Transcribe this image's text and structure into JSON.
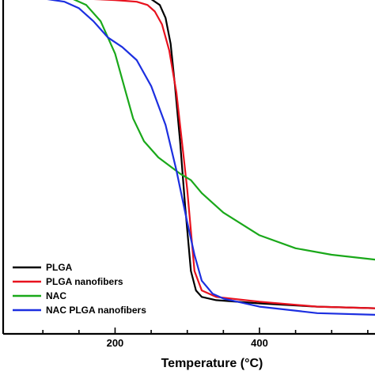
{
  "chart_data": {
    "type": "line",
    "title": "",
    "xlabel": "Temperature (°C)",
    "ylabel": "",
    "xlim": [
      45,
      560
    ],
    "ylim": [
      0,
      100
    ],
    "x_ticks": [
      200,
      400
    ],
    "grid": false,
    "legend": {
      "placement": "bottom-left",
      "entries": [
        "PLGA",
        "PLGA nanofibers",
        "NAC",
        "NAC PLGA nanofibers"
      ]
    },
    "series": [
      {
        "name": "PLGA",
        "color": "#000000",
        "x": [
          45,
          100,
          150,
          200,
          230,
          250,
          262,
          270,
          277,
          283,
          290,
          297,
          305,
          312,
          320,
          340,
          400,
          480,
          560
        ],
        "y": [
          100,
          99.8,
          99.7,
          99.6,
          99.4,
          98.8,
          97,
          93,
          85,
          72,
          55,
          35,
          15,
          9,
          7,
          6,
          5,
          4,
          3.5
        ]
      },
      {
        "name": "PLGA nanofibers",
        "color": "#e8121e",
        "x": [
          45,
          100,
          150,
          200,
          230,
          245,
          255,
          265,
          275,
          285,
          295,
          300,
          310,
          320,
          340,
          400,
          480,
          560
        ],
        "y": [
          100,
          99.5,
          99,
          98.5,
          98,
          97,
          95,
          91,
          83,
          70,
          50,
          40,
          15,
          9,
          7,
          5.5,
          4,
          3.5
        ]
      },
      {
        "name": "NAC",
        "color": "#1aa81a",
        "x": [
          45,
          100,
          140,
          160,
          180,
          200,
          215,
          225,
          240,
          260,
          290,
          305,
          320,
          350,
          400,
          450,
          500,
          560
        ],
        "y": [
          100,
          99.5,
          99,
          97,
          92,
          82,
          70,
          62,
          55,
          50,
          45,
          43,
          39,
          33,
          26,
          22,
          20,
          18.5
        ]
      },
      {
        "name": "NAC PLGA nanofibers",
        "color": "#1c2fe0",
        "x": [
          45,
          100,
          130,
          150,
          170,
          190,
          210,
          230,
          250,
          270,
          285,
          300,
          310,
          320,
          335,
          350,
          400,
          480,
          560
        ],
        "y": [
          100,
          99,
          98,
          96,
          92,
          87,
          84,
          80,
          72,
          60,
          46,
          30,
          20,
          12,
          8,
          6.5,
          4,
          2,
          1.5
        ]
      }
    ]
  }
}
